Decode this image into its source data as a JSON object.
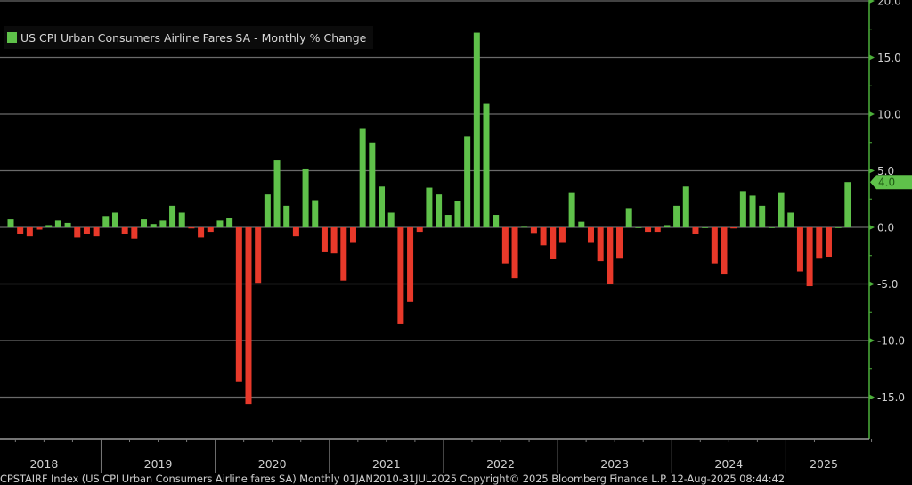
{
  "chart_data": {
    "type": "bar",
    "title": "US CPI Urban Consumers Airline Fares SA - Monthly % Change",
    "legend": [
      "US CPI Urban Consumers Airline Fares SA - Monthly % Change"
    ],
    "legend_position": "top-left",
    "start_month": "2018-03",
    "end_month": "2025-07",
    "values": [
      0.7,
      -0.6,
      -0.8,
      -0.2,
      0.2,
      0.6,
      0.4,
      -0.9,
      -0.6,
      -0.8,
      1.0,
      1.3,
      -0.6,
      -1.0,
      0.7,
      0.3,
      0.6,
      1.9,
      1.3,
      -0.1,
      -0.9,
      -0.4,
      0.6,
      0.8,
      -13.6,
      -15.6,
      -4.9,
      2.9,
      5.9,
      1.9,
      -0.8,
      5.2,
      2.4,
      -2.2,
      -2.3,
      -4.7,
      -1.3,
      8.7,
      7.5,
      3.6,
      1.3,
      -8.5,
      -6.6,
      -0.4,
      3.5,
      2.9,
      1.1,
      2.3,
      8.0,
      17.2,
      10.9,
      1.1,
      -3.2,
      -4.5,
      0.05,
      -0.5,
      -1.6,
      -2.8,
      -1.3,
      3.1,
      0.5,
      -1.3,
      -3.0,
      -5.0,
      -2.7,
      1.7,
      0,
      -0.4,
      -0.4,
      0.2,
      1.9,
      3.6,
      -0.6,
      0,
      -3.2,
      -4.1,
      -0.1,
      3.2,
      2.8,
      1.9,
      0,
      3.1,
      1.3,
      -3.9,
      -5.2,
      -2.7,
      -2.6,
      0,
      4.0
    ],
    "ylim": [
      -17.5,
      20
    ],
    "yticks": [
      "20.0",
      "15.0",
      "10.0",
      "5.0",
      "0.0",
      "-5.0",
      "-10.0",
      "-15.0"
    ],
    "ytick_values": [
      20,
      15,
      10,
      5,
      0,
      -5,
      -10,
      -15
    ],
    "year_labels": [
      "2018",
      "2019",
      "2020",
      "2021",
      "2022",
      "2023",
      "2024",
      "2025"
    ],
    "last_value_label": "4.0",
    "positive_color": "#5fc14a",
    "negative_color": "#e8392a",
    "axis_color": "#4caf3a",
    "grid": true,
    "xlabel": "",
    "ylabel": ""
  },
  "footer": "CPSTAIRF Index (US CPI Urban Consumers Airline fares SA)  Monthly 01JAN2010-31JUL2025  Copyright© 2025 Bloomberg Finance L.P.  12-Aug-2025 08:44:42"
}
